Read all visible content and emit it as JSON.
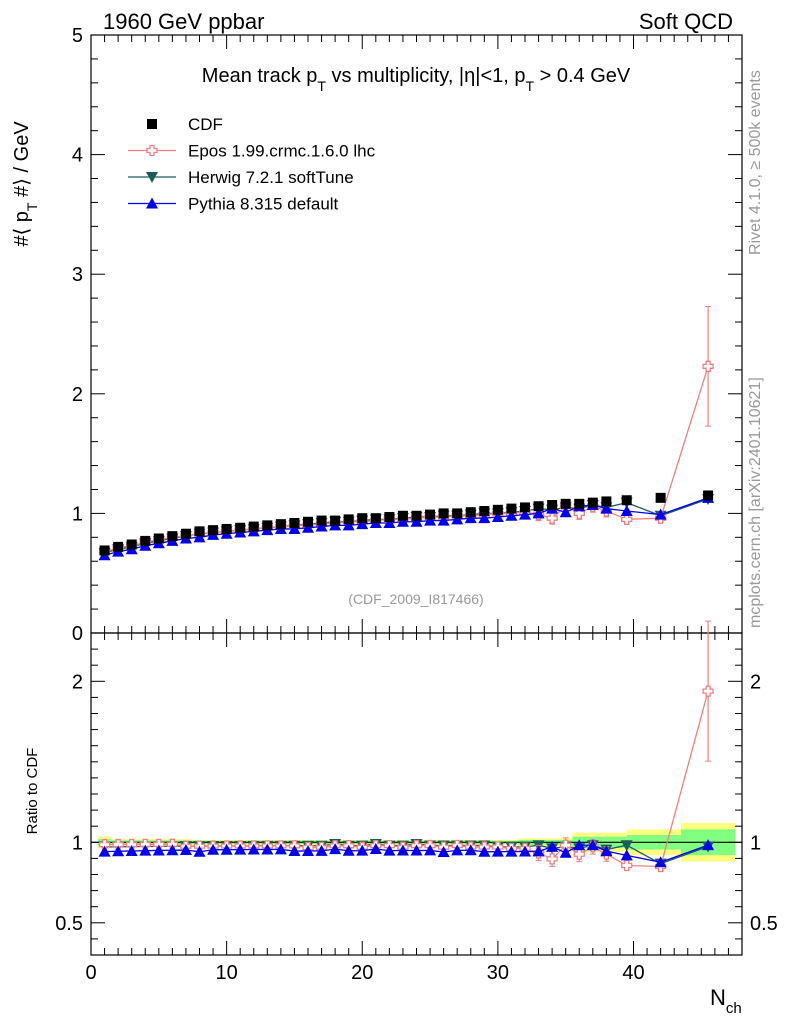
{
  "header": {
    "left": "1960 GeV ppbar",
    "right": "Soft QCD"
  },
  "side_text": {
    "rivet": "Rivet 4.1.0, ≥ 500k events",
    "mcplots": "mcplots.cern.ch [arXiv:2401.10621]"
  },
  "analysis_tag": "(CDF_2009_I817466)",
  "colors": {
    "cdf": "#000000",
    "epos": "#f08080",
    "herwig": "#1c5c5c",
    "pythia": "#0000ee",
    "band_outer": "#ffff80",
    "band_inner": "#80ff80"
  },
  "chart_data": [
    {
      "type": "scatter",
      "title_parts": {
        "main": "Mean track p",
        "sub1": "T",
        "mid": " vs multiplicity, |η|<1, p",
        "sub2": "T",
        "tail": " > 0.4 GeV"
      },
      "ylabel_parts": {
        "pre": "#⟨ p",
        "sub": "T",
        "post": " #⟩ / GeV"
      },
      "ylim": [
        0,
        5
      ],
      "xlim": [
        0,
        48
      ],
      "yticks": [
        0,
        1,
        2,
        3,
        4,
        5
      ],
      "ytick_labels": [
        "0",
        "1",
        "2",
        "3",
        "4",
        "5"
      ],
      "legend": [
        "CDF",
        "Epos 1.99.crmc.1.6.0 lhc",
        "Herwig 7.2.1 softTune",
        "Pythia 8.315 default"
      ],
      "legend_position": "top-left",
      "x": [
        1,
        2,
        3,
        4,
        5,
        6,
        7,
        8,
        9,
        10,
        11,
        12,
        13,
        14,
        15,
        16,
        17,
        18,
        19,
        20,
        21,
        22,
        23,
        24,
        25,
        26,
        27,
        28,
        29,
        30,
        31,
        32,
        33,
        34,
        35,
        36,
        37,
        38,
        39.5,
        42,
        45.5
      ],
      "series": [
        {
          "name": "CDF",
          "values": [
            0.69,
            0.72,
            0.74,
            0.77,
            0.79,
            0.81,
            0.83,
            0.85,
            0.86,
            0.87,
            0.88,
            0.89,
            0.9,
            0.91,
            0.92,
            0.93,
            0.94,
            0.94,
            0.95,
            0.96,
            0.96,
            0.97,
            0.98,
            0.98,
            0.99,
            1.0,
            1.0,
            1.01,
            1.02,
            1.03,
            1.04,
            1.05,
            1.06,
            1.07,
            1.08,
            1.08,
            1.09,
            1.1,
            1.11,
            1.13,
            1.15
          ]
        },
        {
          "name": "Epos 1.99.crmc.1.6.0 lhc",
          "values": [
            0.68,
            0.71,
            0.73,
            0.76,
            0.78,
            0.8,
            0.81,
            0.83,
            0.84,
            0.85,
            0.86,
            0.87,
            0.88,
            0.89,
            0.9,
            0.9,
            0.91,
            0.92,
            0.93,
            0.93,
            0.94,
            0.95,
            0.95,
            0.96,
            0.97,
            0.97,
            0.98,
            0.98,
            0.99,
            1.0,
            1.0,
            1.01,
            0.99,
            0.96,
            1.06,
            1.0,
            1.06,
            1.02,
            0.95,
            0.96,
            2.23
          ],
          "err_x": [
            33,
            34,
            35,
            36,
            37,
            38,
            39.5,
            42,
            45.5
          ],
          "err": [
            0.05,
            0.05,
            0.05,
            0.05,
            0.05,
            0.05,
            0.03,
            0.03,
            0.5
          ]
        },
        {
          "name": "Herwig 7.2.1 softTune",
          "values": [
            0.67,
            0.7,
            0.72,
            0.75,
            0.77,
            0.79,
            0.81,
            0.83,
            0.84,
            0.85,
            0.86,
            0.87,
            0.88,
            0.89,
            0.9,
            0.91,
            0.92,
            0.93,
            0.93,
            0.94,
            0.95,
            0.95,
            0.96,
            0.97,
            0.97,
            0.98,
            0.98,
            0.99,
            1.0,
            1.0,
            1.01,
            1.02,
            1.04,
            1.03,
            1.05,
            1.04,
            1.07,
            1.05,
            1.09,
            0.98,
            1.12
          ]
        },
        {
          "name": "Pythia 8.315 default",
          "values": [
            0.65,
            0.68,
            0.7,
            0.73,
            0.75,
            0.77,
            0.79,
            0.8,
            0.82,
            0.83,
            0.84,
            0.85,
            0.86,
            0.87,
            0.87,
            0.88,
            0.89,
            0.9,
            0.9,
            0.91,
            0.92,
            0.92,
            0.93,
            0.93,
            0.94,
            0.94,
            0.95,
            0.96,
            0.96,
            0.97,
            0.98,
            0.99,
            1.0,
            1.04,
            1.01,
            1.06,
            1.07,
            1.04,
            1.02,
            0.99,
            1.13
          ]
        }
      ]
    },
    {
      "type": "scatter",
      "ylabel": "Ratio to CDF",
      "xlabel": "N",
      "xlabel_sub": "ch",
      "ylim": [
        0.3,
        2.3
      ],
      "xlim": [
        0,
        48
      ],
      "yticks": [
        0.5,
        1,
        2
      ],
      "ytick_labels": [
        "0.5",
        "1",
        "2"
      ],
      "xticks": [
        0,
        10,
        20,
        30,
        40
      ],
      "xtick_labels": [
        "0",
        "10",
        "20",
        "30",
        "40"
      ],
      "reference_line": 1,
      "band_outer": [
        [
          0.5,
          1.5,
          0.035
        ],
        [
          1.5,
          7.5,
          0.02
        ],
        [
          7.5,
          31.5,
          0.015
        ],
        [
          31.5,
          35.5,
          0.025
        ],
        [
          35.5,
          39.5,
          0.06
        ],
        [
          39.5,
          43.5,
          0.08
        ],
        [
          43.5,
          47.5,
          0.12
        ]
      ],
      "band_inner": [
        [
          0.5,
          1.5,
          0.02
        ],
        [
          1.5,
          7.5,
          0.012
        ],
        [
          7.5,
          31.5,
          0.01
        ],
        [
          31.5,
          35.5,
          0.015
        ],
        [
          35.5,
          39.5,
          0.035
        ],
        [
          39.5,
          43.5,
          0.045
        ],
        [
          43.5,
          47.5,
          0.08
        ]
      ]
    }
  ]
}
